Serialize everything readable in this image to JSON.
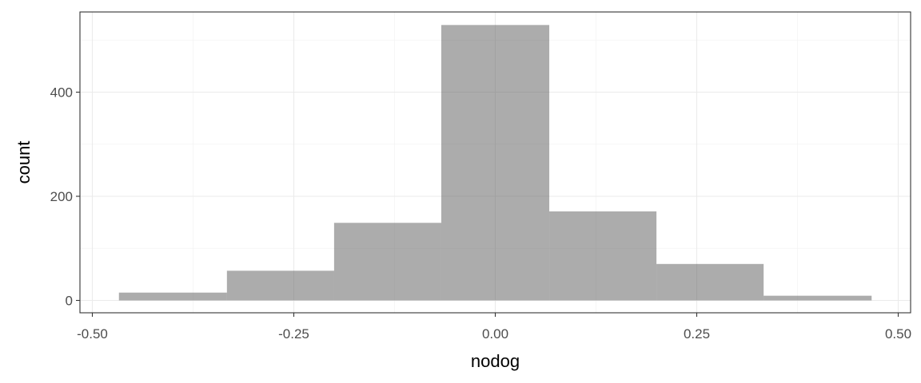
{
  "chart_data": {
    "type": "bar",
    "subtype": "histogram",
    "xlabel": "nodog",
    "ylabel": "count",
    "xlim": [
      -0.5,
      0.5
    ],
    "ylim": [
      0,
      530
    ],
    "x_ticks": [
      -0.5,
      -0.25,
      0.0,
      0.25,
      0.5
    ],
    "x_tick_labels": [
      "-0.50",
      "-0.25",
      "0.00",
      "0.25",
      "0.50"
    ],
    "y_ticks": [
      0,
      200,
      400
    ],
    "y_tick_labels": [
      "0",
      "200",
      "400"
    ],
    "bins": [
      {
        "x_start": -0.467,
        "x_end": -0.333,
        "count": 15
      },
      {
        "x_start": -0.333,
        "x_end": -0.2,
        "count": 57
      },
      {
        "x_start": -0.2,
        "x_end": -0.067,
        "count": 149
      },
      {
        "x_start": -0.067,
        "x_end": 0.067,
        "count": 529
      },
      {
        "x_start": 0.067,
        "x_end": 0.2,
        "count": 171
      },
      {
        "x_start": 0.2,
        "x_end": 0.333,
        "count": 70
      },
      {
        "x_start": 0.333,
        "x_end": 0.467,
        "count": 9
      }
    ],
    "bar_color": "#595959",
    "grid": true,
    "theme": "bw"
  }
}
